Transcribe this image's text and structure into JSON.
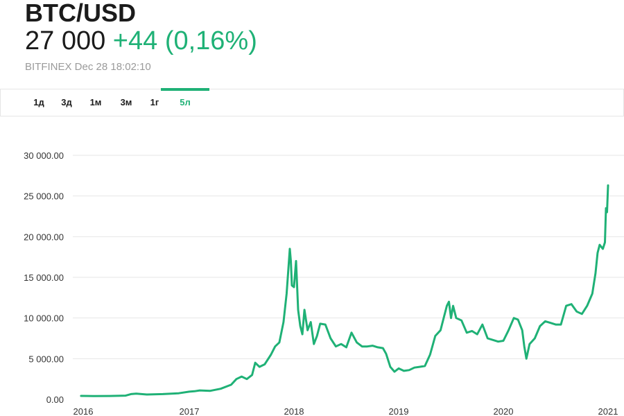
{
  "header": {
    "symbol": "BTC/USD",
    "price": "27 000",
    "change": "+44 (0,16%)",
    "source": "BITFINEX Dec 28 18:02:10"
  },
  "tabs": [
    {
      "label": "1д",
      "active": false
    },
    {
      "label": "3д",
      "active": false
    },
    {
      "label": "1м",
      "active": false
    },
    {
      "label": "3м",
      "active": false
    },
    {
      "label": "1г",
      "active": false
    },
    {
      "label": "5л",
      "active": true
    }
  ],
  "colors": {
    "accent": "#1fb176",
    "line": "#1fb176",
    "text": "#1b1b1b",
    "muted": "#9a9a9a",
    "grid": "#e6e6e6"
  },
  "chart_data": {
    "type": "line",
    "title": "",
    "xlabel": "",
    "ylabel": "",
    "x_ticks": [
      "2016",
      "2017",
      "2018",
      "2019",
      "2020",
      "2021"
    ],
    "y_ticks": [
      "0.00",
      "5 000.00",
      "10 000.00",
      "15 000.00",
      "20 000.00",
      "25 000.00",
      "30 000.00"
    ],
    "ylim": [
      0,
      30000
    ],
    "xlim": [
      2015.97,
      2021.03
    ],
    "grid": true,
    "series": [
      {
        "x": [
          2015.98,
          2016.1,
          2016.25,
          2016.4,
          2016.45,
          2016.5,
          2016.6,
          2016.75,
          2016.9,
          2017.0,
          2017.05,
          2017.1,
          2017.2,
          2017.3,
          2017.4,
          2017.45,
          2017.5,
          2017.55,
          2017.6,
          2017.63,
          2017.67,
          2017.72,
          2017.78,
          2017.82,
          2017.86,
          2017.9,
          2017.93,
          2017.96,
          2017.97,
          2017.98,
          2018.0,
          2018.02,
          2018.04,
          2018.06,
          2018.08,
          2018.1,
          2018.13,
          2018.16,
          2018.19,
          2018.22,
          2018.25,
          2018.3,
          2018.35,
          2018.4,
          2018.45,
          2018.5,
          2018.55,
          2018.6,
          2018.65,
          2018.7,
          2018.75,
          2018.8,
          2018.85,
          2018.88,
          2018.92,
          2018.96,
          2019.0,
          2019.05,
          2019.1,
          2019.15,
          2019.2,
          2019.25,
          2019.3,
          2019.35,
          2019.4,
          2019.43,
          2019.46,
          2019.48,
          2019.5,
          2019.52,
          2019.55,
          2019.6,
          2019.65,
          2019.7,
          2019.75,
          2019.8,
          2019.85,
          2019.9,
          2019.95,
          2020.0,
          2020.05,
          2020.1,
          2020.14,
          2020.18,
          2020.2,
          2020.22,
          2020.25,
          2020.3,
          2020.35,
          2020.4,
          2020.45,
          2020.5,
          2020.55,
          2020.6,
          2020.65,
          2020.7,
          2020.75,
          2020.8,
          2020.85,
          2020.88,
          2020.9,
          2020.92,
          2020.95,
          2020.97,
          2020.98,
          2020.99,
          2021.0
        ],
        "y": [
          430,
          400,
          420,
          460,
          650,
          700,
          600,
          650,
          750,
          950,
          1000,
          1100,
          1050,
          1300,
          1800,
          2500,
          2800,
          2500,
          3000,
          4500,
          4000,
          4300,
          5500,
          6500,
          7000,
          9500,
          13000,
          18500,
          17000,
          14000,
          13800,
          17000,
          11000,
          9000,
          8000,
          11000,
          8500,
          9500,
          6800,
          7800,
          9300,
          9200,
          7500,
          6500,
          6800,
          6400,
          8200,
          7000,
          6500,
          6500,
          6600,
          6400,
          6300,
          5600,
          4000,
          3400,
          3800,
          3500,
          3600,
          3900,
          4000,
          4100,
          5500,
          7800,
          8500,
          10000,
          11500,
          12000,
          10000,
          11500,
          10000,
          9700,
          8200,
          8400,
          8000,
          9200,
          7500,
          7300,
          7100,
          7200,
          8500,
          10000,
          9800,
          8500,
          6500,
          5000,
          6800,
          7500,
          9000,
          9600,
          9400,
          9200,
          9200,
          11500,
          11700,
          10800,
          10500,
          11500,
          13000,
          15500,
          18000,
          19000,
          18500,
          19300,
          23500,
          23000,
          26300
        ]
      }
    ]
  }
}
